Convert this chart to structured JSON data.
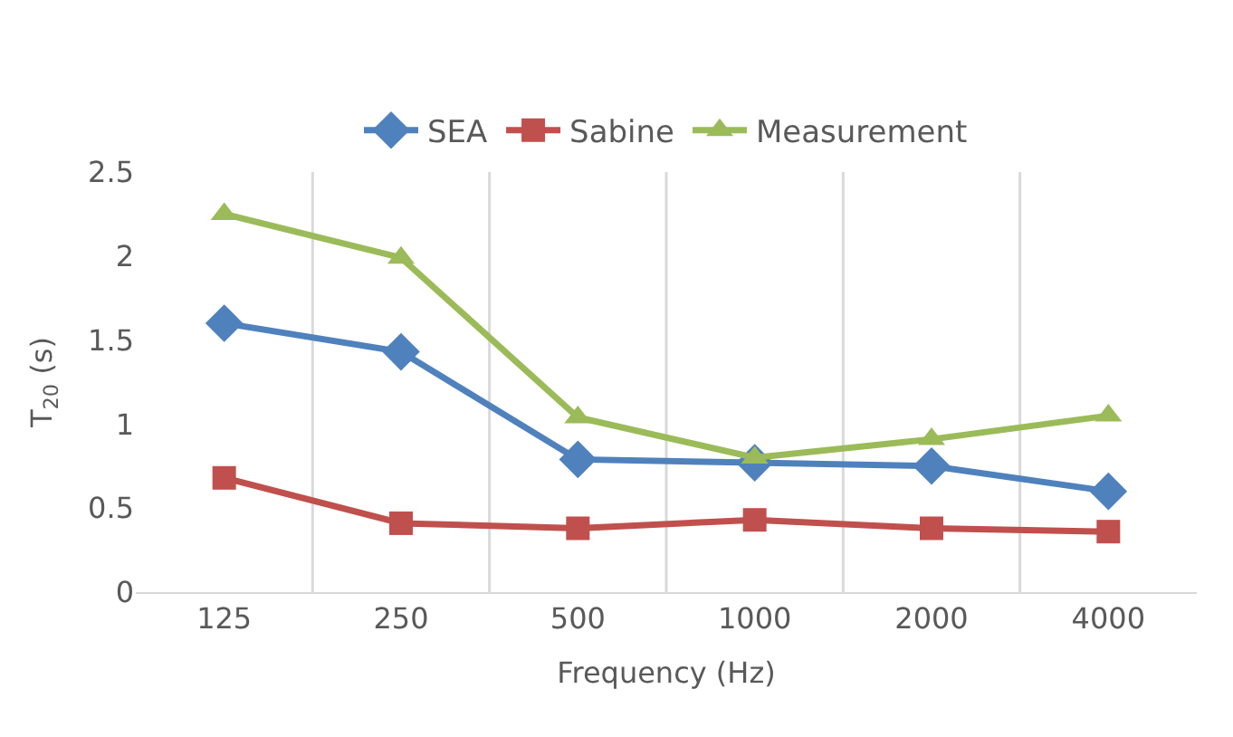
{
  "chart_data": {
    "type": "line",
    "xlabel": "Frequency (Hz)",
    "ylabel": "T$_{20}$ (s)",
    "categories": [
      "125",
      "250",
      "500",
      "1000",
      "2000",
      "4000"
    ],
    "series": [
      {
        "name": "SEA",
        "color": "#4f81bd",
        "marker": "diamond",
        "values": [
          1.6,
          1.43,
          0.79,
          0.77,
          0.75,
          0.6
        ]
      },
      {
        "name": "Sabine",
        "color": "#c0504d",
        "marker": "square",
        "values": [
          0.68,
          0.41,
          0.38,
          0.43,
          0.38,
          0.36
        ]
      },
      {
        "name": "Measurement",
        "color": "#9bbb59",
        "marker": "triangle",
        "values": [
          2.25,
          1.99,
          1.04,
          0.8,
          0.91,
          1.05
        ]
      }
    ],
    "ylim": [
      0,
      2.5
    ],
    "yticks": [
      0,
      0.5,
      1,
      1.5,
      2,
      2.5
    ],
    "grid": "x",
    "legend": "top"
  }
}
